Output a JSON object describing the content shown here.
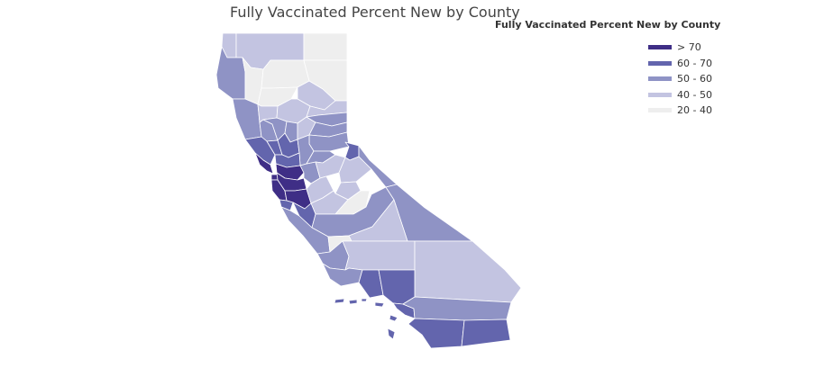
{
  "chart": {
    "title": "Fully Vaccinated Percent New by County"
  },
  "legend": {
    "title": "Fully Vaccinated Percent New by County",
    "items": [
      {
        "label": "> 70",
        "color": "#3f2e86"
      },
      {
        "label": "60 - 70",
        "color": "#6365ad"
      },
      {
        "label": "50 - 60",
        "color": "#8f93c5"
      },
      {
        "label": "40 - 50",
        "color": "#c3c4e1"
      },
      {
        "label": "20 - 40",
        "color": "#eeeeee"
      }
    ]
  },
  "chart_data": {
    "type": "choropleth",
    "title": "Fully Vaccinated Percent New by County",
    "region": "California",
    "bins": [
      "> 70",
      "60 - 70",
      "50 - 60",
      "40 - 50",
      "20 - 40"
    ],
    "counties": [
      {
        "name": "Del Norte",
        "bin": "40 - 50"
      },
      {
        "name": "Siskiyou",
        "bin": "40 - 50"
      },
      {
        "name": "Modoc",
        "bin": "20 - 40"
      },
      {
        "name": "Humboldt",
        "bin": "50 - 60"
      },
      {
        "name": "Trinity",
        "bin": "20 - 40"
      },
      {
        "name": "Shasta",
        "bin": "20 - 40"
      },
      {
        "name": "Lassen",
        "bin": "20 - 40"
      },
      {
        "name": "Mendocino",
        "bin": "50 - 60"
      },
      {
        "name": "Tehama",
        "bin": "20 - 40"
      },
      {
        "name": "Plumas",
        "bin": "40 - 50"
      },
      {
        "name": "Glenn",
        "bin": "40 - 50"
      },
      {
        "name": "Butte",
        "bin": "40 - 50"
      },
      {
        "name": "Sierra",
        "bin": "40 - 50"
      },
      {
        "name": "Lake",
        "bin": "50 - 60"
      },
      {
        "name": "Colusa",
        "bin": "50 - 60"
      },
      {
        "name": "Sutter",
        "bin": "50 - 60"
      },
      {
        "name": "Yuba",
        "bin": "40 - 50"
      },
      {
        "name": "Nevada",
        "bin": "50 - 60"
      },
      {
        "name": "Placer",
        "bin": "50 - 60"
      },
      {
        "name": "El Dorado",
        "bin": "50 - 60"
      },
      {
        "name": "Sonoma",
        "bin": "60 - 70"
      },
      {
        "name": "Napa",
        "bin": "60 - 70"
      },
      {
        "name": "Yolo",
        "bin": "60 - 70"
      },
      {
        "name": "Sacramento",
        "bin": "50 - 60"
      },
      {
        "name": "Marin",
        "bin": "> 70"
      },
      {
        "name": "Solano",
        "bin": "60 - 70"
      },
      {
        "name": "Contra Costa",
        "bin": "> 70"
      },
      {
        "name": "San Francisco",
        "bin": "> 70"
      },
      {
        "name": "San Mateo",
        "bin": "> 70"
      },
      {
        "name": "Alameda",
        "bin": "> 70"
      },
      {
        "name": "Santa Clara",
        "bin": "> 70"
      },
      {
        "name": "Santa Cruz",
        "bin": "60 - 70"
      },
      {
        "name": "San Joaquin",
        "bin": "50 - 60"
      },
      {
        "name": "Amador",
        "bin": "50 - 60"
      },
      {
        "name": "Calaveras",
        "bin": "40 - 50"
      },
      {
        "name": "Alpine",
        "bin": "60 - 70"
      },
      {
        "name": "Tuolumne",
        "bin": "40 - 50"
      },
      {
        "name": "Mono",
        "bin": "50 - 60"
      },
      {
        "name": "Stanislaus",
        "bin": "40 - 50"
      },
      {
        "name": "Mariposa",
        "bin": "40 - 50"
      },
      {
        "name": "Merced",
        "bin": "40 - 50"
      },
      {
        "name": "Madera",
        "bin": "20 - 40"
      },
      {
        "name": "San Benito",
        "bin": "60 - 70"
      },
      {
        "name": "Fresno",
        "bin": "50 - 60"
      },
      {
        "name": "Inyo",
        "bin": "50 - 60"
      },
      {
        "name": "Monterey",
        "bin": "50 - 60"
      },
      {
        "name": "Kings",
        "bin": "20 - 40"
      },
      {
        "name": "Tulare",
        "bin": "40 - 50"
      },
      {
        "name": "San Luis Obispo",
        "bin": "50 - 60"
      },
      {
        "name": "Kern",
        "bin": "40 - 50"
      },
      {
        "name": "San Bernardino",
        "bin": "40 - 50"
      },
      {
        "name": "Santa Barbara",
        "bin": "50 - 60"
      },
      {
        "name": "Ventura",
        "bin": "60 - 70"
      },
      {
        "name": "Los Angeles",
        "bin": "60 - 70"
      },
      {
        "name": "Orange",
        "bin": "60 - 70"
      },
      {
        "name": "Riverside",
        "bin": "50 - 60"
      },
      {
        "name": "San Diego",
        "bin": "60 - 70"
      },
      {
        "name": "Imperial",
        "bin": "60 - 70"
      }
    ]
  }
}
